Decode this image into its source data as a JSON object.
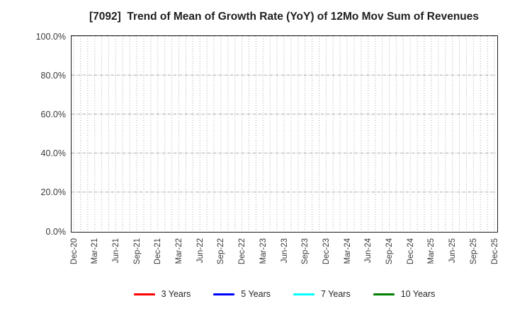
{
  "title": "[7092]  Trend of Mean of Growth Rate (YoY) of 12Mo Mov Sum of Revenues",
  "chart_data": {
    "type": "line",
    "title": "[7092]  Trend of Mean of Growth Rate (YoY) of 12Mo Mov Sum of Revenues",
    "xlabel": "",
    "ylabel": "",
    "ylim": [
      0,
      100
    ],
    "y_ticks_percent": [
      0,
      20,
      40,
      60,
      80,
      100
    ],
    "y_tick_labels": [
      "0.0%",
      "20.0%",
      "40.0%",
      "60.0%",
      "80.0%",
      "100.0%"
    ],
    "x_tick_labels": [
      "Dec-20",
      "Mar-21",
      "Jun-21",
      "Sep-21",
      "Dec-21",
      "Mar-22",
      "Jun-22",
      "Sep-22",
      "Dec-22",
      "Mar-23",
      "Jun-23",
      "Sep-23",
      "Dec-23",
      "Mar-24",
      "Jun-24",
      "Sep-24",
      "Dec-24",
      "Mar-25",
      "Jun-25",
      "Sep-25",
      "Dec-25"
    ],
    "minor_vertical_gridlines": "monthly",
    "grid": true,
    "legend_position": "bottom",
    "series": [
      {
        "name": "3 Years",
        "color": "#ff0000",
        "x": [],
        "values": []
      },
      {
        "name": "5 Years",
        "color": "#0000ff",
        "x": [],
        "values": []
      },
      {
        "name": "7 Years",
        "color": "#00ffff",
        "x": [],
        "values": []
      },
      {
        "name": "10 Years",
        "color": "#008000",
        "x": [],
        "values": []
      }
    ],
    "plotted_points": "none - plot area is empty, only gridlines are shown"
  },
  "colors": {
    "background": "#ffffff",
    "plot_border": "#1a1a1a",
    "gridline": "#aaaaaa",
    "title_text": "#1f1f1f",
    "tick_text": "#3a3a3a"
  }
}
